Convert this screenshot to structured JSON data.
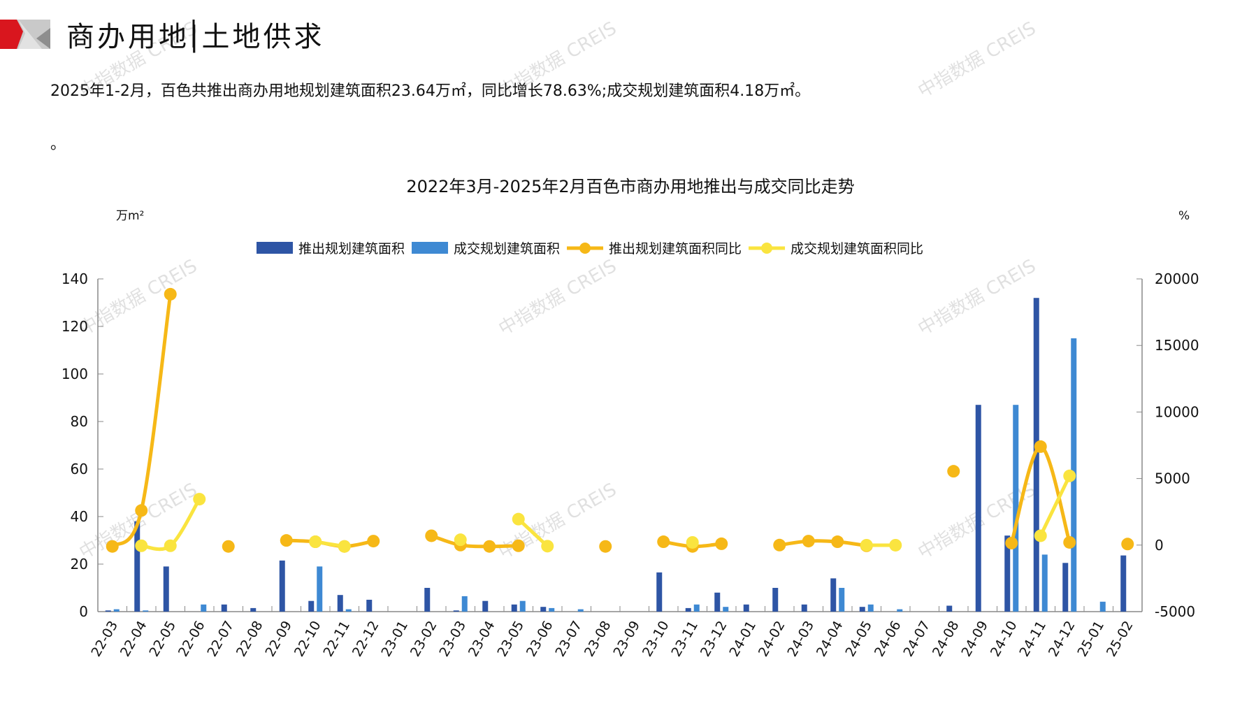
{
  "header": {
    "title": "商办用地|土地供求",
    "summary": "2025年1-2月，百色共推出商办用地规划建筑面积23.64万㎡，同比增长78.63%;成交规划建筑面积4.18万㎡。",
    "summary_line2": "。",
    "watermark": "中指数据 CREIS"
  },
  "colors": {
    "supply_bar": "#2E55A5",
    "deal_bar": "#3E89D3",
    "supply_yoy": "#F6B817",
    "deal_yoy": "#FAE43F",
    "accent_red": "#D9161E"
  },
  "chart_data": {
    "type": "bar+line",
    "title": "2022年3月-2025年2月百色市商办用地推出与成交同比走势",
    "ylabel_left": "万m²",
    "ylabel_right": "%",
    "ylim_left": [
      0,
      140
    ],
    "yticks_left": [
      "0",
      "20",
      "40",
      "60",
      "80",
      "100",
      "120",
      "140"
    ],
    "ylim_right": [
      -5000,
      20000
    ],
    "yticks_right": [
      "-5000",
      "0",
      "5000",
      "10000",
      "15000",
      "20000"
    ],
    "grid": false,
    "legend_position": "top",
    "categories": [
      "22-03",
      "22-04",
      "22-05",
      "22-06",
      "22-07",
      "22-08",
      "22-09",
      "22-10",
      "22-11",
      "22-12",
      "23-01",
      "23-02",
      "23-03",
      "23-04",
      "23-05",
      "23-06",
      "23-07",
      "23-08",
      "23-09",
      "23-10",
      "23-11",
      "23-12",
      "24-01",
      "24-02",
      "24-03",
      "24-04",
      "24-05",
      "24-06",
      "24-07",
      "24-08",
      "24-09",
      "24-10",
      "24-11",
      "24-12",
      "25-01",
      "25-02"
    ],
    "series": [
      {
        "name": "推出规划建筑面积",
        "type": "bar",
        "axis": "left",
        "values": [
          0.5,
          38,
          19,
          null,
          3,
          1.5,
          21.5,
          4.5,
          7,
          5,
          null,
          10,
          0.5,
          4.5,
          3,
          2,
          null,
          null,
          null,
          16.5,
          1.5,
          8,
          3,
          10,
          3,
          14,
          2,
          null,
          null,
          2.5,
          87,
          32,
          132,
          20.5,
          null,
          23.64
        ]
      },
      {
        "name": "成交规划建筑面积",
        "type": "bar",
        "axis": "left",
        "values": [
          1,
          0.5,
          null,
          3,
          null,
          null,
          null,
          19,
          1,
          null,
          null,
          null,
          6.5,
          null,
          4.5,
          1.5,
          1,
          null,
          null,
          null,
          3,
          2,
          null,
          null,
          null,
          10,
          3,
          1,
          null,
          null,
          null,
          87,
          24,
          115,
          4.18,
          null
        ]
      },
      {
        "name": "推出规划建筑面积同比",
        "type": "line",
        "axis": "right",
        "values": [
          -100,
          2600,
          18850,
          null,
          -100,
          null,
          350,
          250,
          -100,
          300,
          null,
          700,
          0,
          -100,
          -50,
          null,
          null,
          -100,
          null,
          250,
          -100,
          100,
          null,
          0,
          300,
          250,
          -50,
          null,
          null,
          5550,
          null,
          150,
          7400,
          200,
          null,
          78.63
        ]
      },
      {
        "name": "成交规划建筑面积同比",
        "type": "line",
        "axis": "right",
        "values": [
          null,
          -50,
          -50,
          3450,
          null,
          null,
          null,
          250,
          -100,
          null,
          null,
          null,
          400,
          null,
          1950,
          -80,
          null,
          null,
          null,
          null,
          200,
          null,
          null,
          null,
          null,
          null,
          -10,
          -10,
          null,
          null,
          null,
          null,
          700,
          5200,
          null,
          null
        ]
      }
    ]
  }
}
